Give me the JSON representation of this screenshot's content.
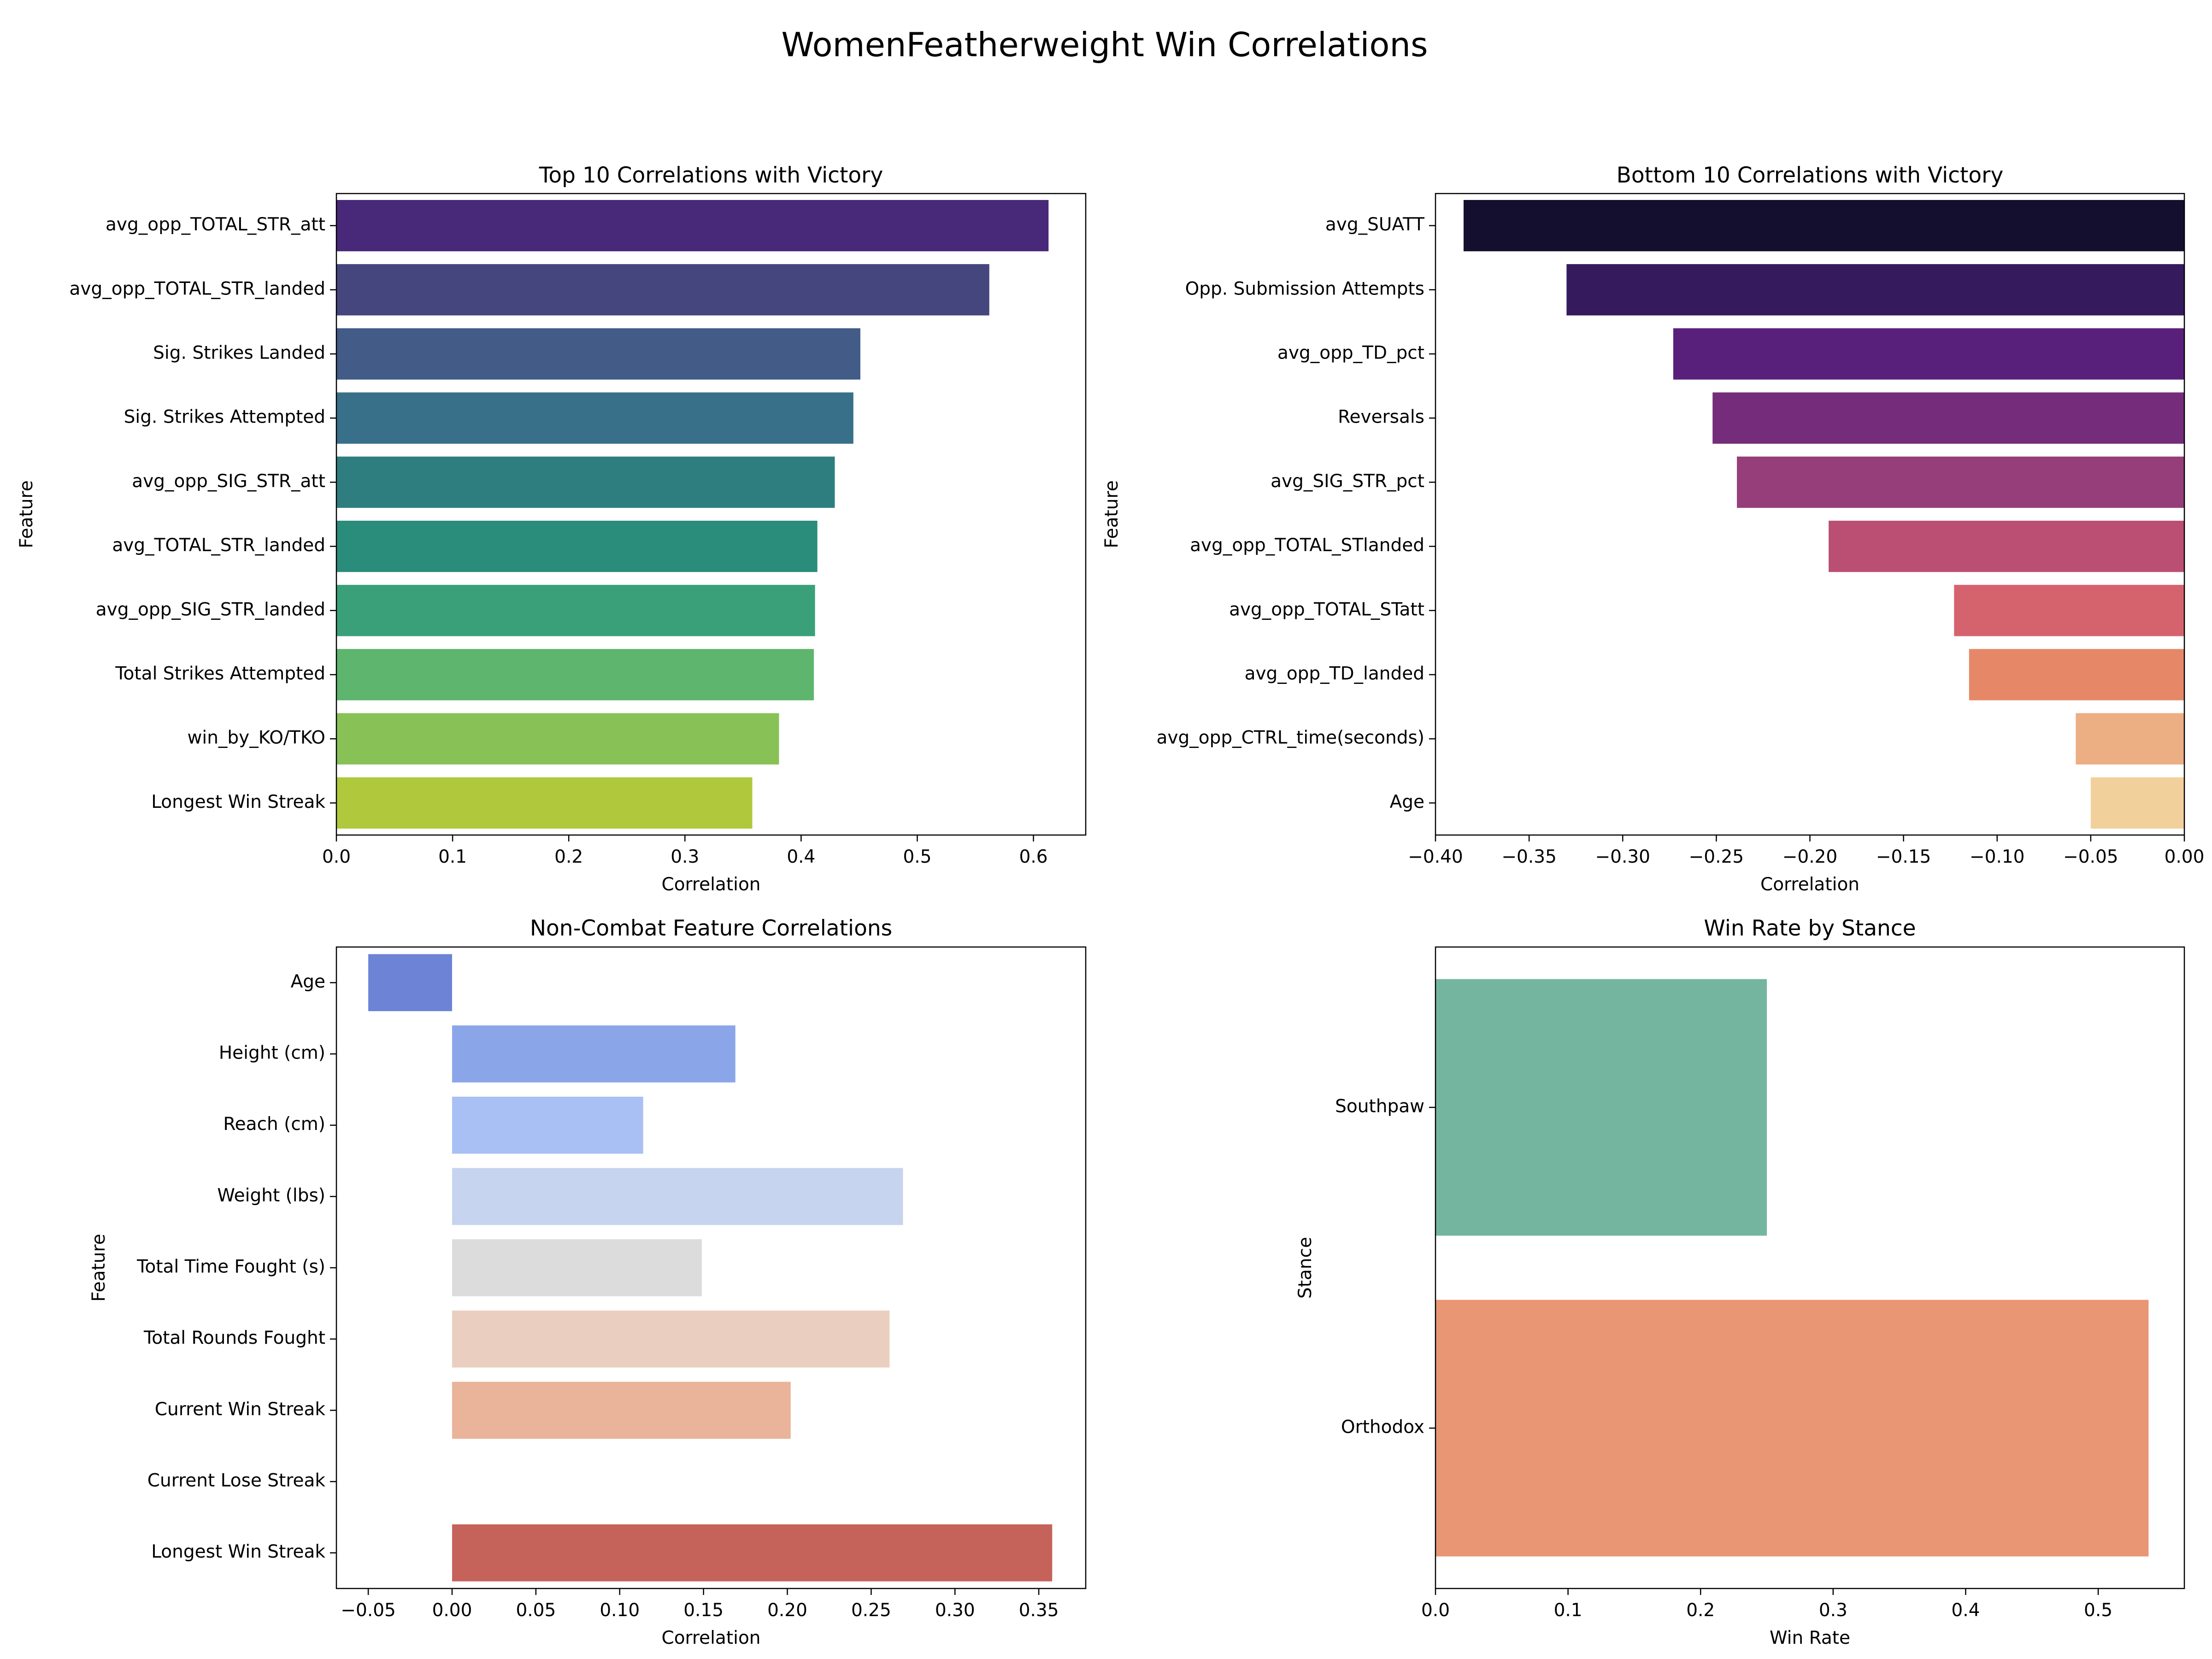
{
  "figure": {
    "title": "WomenFeatherweight Win Correlations"
  },
  "chart_data": [
    {
      "type": "bar",
      "orientation": "horizontal",
      "title": "Top 10 Correlations with Victory",
      "xlabel": "Correlation",
      "ylabel": "Feature",
      "xlim": [
        0,
        0.645
      ],
      "xticks": [
        0.0,
        0.1,
        0.2,
        0.3,
        0.4,
        0.5,
        0.6
      ],
      "xtick_labels": [
        "0.0",
        "0.1",
        "0.2",
        "0.3",
        "0.4",
        "0.5",
        "0.6"
      ],
      "categories": [
        "avg_opp_TOTAL_STR_att",
        "avg_opp_TOTAL_STR_landed",
        "Sig. Strikes Landed",
        "Sig. Strikes Attempted",
        "avg_opp_SIG_STR_att",
        "avg_TOTAL_STR_landed",
        "avg_opp_SIG_STR_landed",
        "Total Strikes Attempted",
        "win_by_KO/TKO",
        "Longest Win Streak"
      ],
      "values": [
        0.613,
        0.562,
        0.451,
        0.445,
        0.429,
        0.414,
        0.412,
        0.411,
        0.381,
        0.358
      ],
      "colors": [
        "#482878",
        "#46467e",
        "#425b87",
        "#38708a",
        "#2e7e7f",
        "#2a8c7a",
        "#3aa07a",
        "#5eb56e",
        "#88c257",
        "#b0c83b"
      ],
      "grid": false
    },
    {
      "type": "bar",
      "orientation": "horizontal",
      "title": "Bottom 10 Correlations with Victory",
      "xlabel": "Correlation",
      "ylabel": "Feature",
      "xlim": [
        -0.4,
        0.0
      ],
      "xticks": [
        -0.4,
        -0.35,
        -0.3,
        -0.25,
        -0.2,
        -0.15,
        -0.1,
        -0.05,
        0.0
      ],
      "xtick_labels": [
        "−0.40",
        "−0.35",
        "−0.30",
        "−0.25",
        "−0.20",
        "−0.15",
        "−0.10",
        "−0.05",
        "0.00"
      ],
      "categories": [
        "avg_SUATT",
        "Opp. Submission Attempts",
        "avg_opp_TD_pct",
        "Reversals",
        "avg_SIG_STR_pct",
        "avg_opp_TOTAL_STlanded",
        "avg_opp_TOTAL_STatt",
        "avg_opp_TD_landed",
        "avg_opp_CTRL_time(seconds)",
        "Age"
      ],
      "values": [
        -0.385,
        -0.33,
        -0.273,
        -0.252,
        -0.239,
        -0.19,
        -0.123,
        -0.115,
        -0.058,
        -0.05
      ],
      "colors": [
        "#140f2e",
        "#351a5e",
        "#58207a",
        "#752c7a",
        "#963e7a",
        "#bb4f73",
        "#d5636d",
        "#e68868",
        "#ecae83",
        "#f2d09c"
      ],
      "grid": false
    },
    {
      "type": "bar",
      "orientation": "horizontal",
      "title": "Non-Combat Feature Correlations",
      "xlabel": "Correlation",
      "ylabel": "Feature",
      "xlim": [
        -0.069,
        0.378
      ],
      "xticks": [
        -0.05,
        0.0,
        0.05,
        0.1,
        0.15,
        0.2,
        0.25,
        0.3,
        0.35
      ],
      "xtick_labels": [
        "−0.05",
        "0.00",
        "0.05",
        "0.10",
        "0.15",
        "0.20",
        "0.25",
        "0.30",
        "0.35"
      ],
      "categories": [
        "Age",
        "Height (cm)",
        "Reach (cm)",
        "Weight (lbs)",
        "Total Time Fought (s)",
        "Total Rounds Fought",
        "Current Win Streak",
        "Current Lose Streak",
        "Longest Win Streak"
      ],
      "values": [
        -0.05,
        0.169,
        0.114,
        0.269,
        0.149,
        0.261,
        0.202,
        0.0,
        0.358
      ],
      "colors": [
        "#6c83d6",
        "#8ba6e8",
        "#a9c0f4",
        "#c6d4ef",
        "#dcdcdc",
        "#eacfc1",
        "#e9b49a",
        "#d9826a",
        "#c5635a"
      ],
      "grid": false
    },
    {
      "type": "bar",
      "orientation": "horizontal",
      "title": "Win Rate by Stance",
      "xlabel": "Win Rate",
      "ylabel": "Stance",
      "xlim": [
        0,
        0.565
      ],
      "xticks": [
        0.0,
        0.1,
        0.2,
        0.3,
        0.4,
        0.5
      ],
      "xtick_labels": [
        "0.0",
        "0.1",
        "0.2",
        "0.3",
        "0.4",
        "0.5"
      ],
      "categories": [
        "Southpaw",
        "Orthodox"
      ],
      "values": [
        0.25,
        0.538
      ],
      "colors": [
        "#74b5a0",
        "#e89674"
      ],
      "grid": false
    }
  ]
}
